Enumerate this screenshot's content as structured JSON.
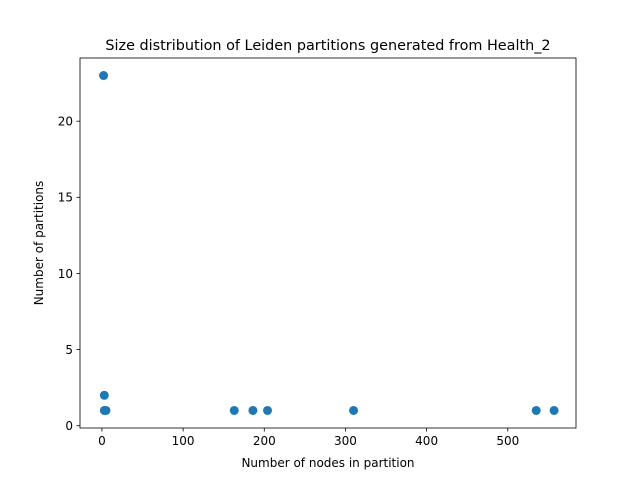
{
  "chart_data": {
    "type": "scatter",
    "title": "Size distribution of Leiden partitions generated from Health_2",
    "xlabel": "Number of nodes in partition",
    "ylabel": "Number of partitions",
    "xlim": [
      -27,
      584
    ],
    "ylim": [
      -0.15,
      24.15
    ],
    "x_ticks": [
      0,
      100,
      200,
      300,
      400,
      500
    ],
    "y_ticks": [
      0,
      5,
      10,
      15,
      20
    ],
    "grid": false,
    "marker_color": "#1f77b4",
    "series": [
      {
        "points": [
          {
            "x": 2,
            "y": 23
          },
          {
            "x": 3,
            "y": 2
          },
          {
            "x": 3,
            "y": 1
          },
          {
            "x": 5,
            "y": 1
          },
          {
            "x": 163,
            "y": 1
          },
          {
            "x": 186,
            "y": 1
          },
          {
            "x": 204,
            "y": 1
          },
          {
            "x": 310,
            "y": 1
          },
          {
            "x": 535,
            "y": 1
          },
          {
            "x": 557,
            "y": 1
          }
        ]
      }
    ]
  }
}
